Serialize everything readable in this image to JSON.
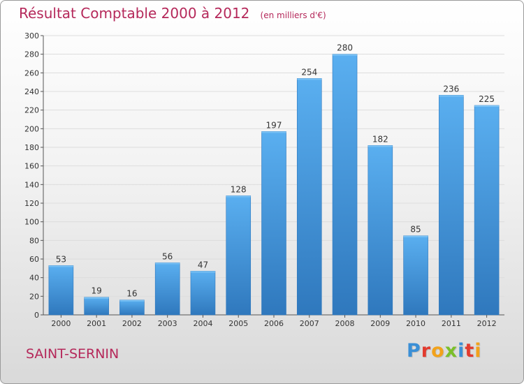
{
  "chart_data": {
    "type": "bar",
    "title": "Résultat Comptable 2000 à 2012",
    "subtitle": "(en milliers d'€)",
    "categories": [
      "2000",
      "2001",
      "2002",
      "2003",
      "2004",
      "2005",
      "2006",
      "2007",
      "2008",
      "2009",
      "2010",
      "2011",
      "2012"
    ],
    "values": [
      53,
      19,
      16,
      56,
      47,
      128,
      197,
      254,
      280,
      182,
      85,
      236,
      225
    ],
    "ylim": [
      0,
      300
    ],
    "yticks": [
      0,
      20,
      40,
      60,
      80,
      100,
      120,
      140,
      160,
      180,
      200,
      220,
      240,
      260,
      280,
      300
    ],
    "grid": true,
    "bar_color": "#4a9de0",
    "title_color": "#b5285a"
  },
  "footer": {
    "commune": "SAINT-SERNIN",
    "logo_letters": [
      "P",
      "r",
      "o",
      "x",
      "i",
      "t",
      "i"
    ],
    "logo_colors": [
      "#3a8fd6",
      "#e23b2f",
      "#f2a21b",
      "#7bbf2a",
      "#3a8fd6",
      "#e23b2f",
      "#f2a21b"
    ]
  }
}
